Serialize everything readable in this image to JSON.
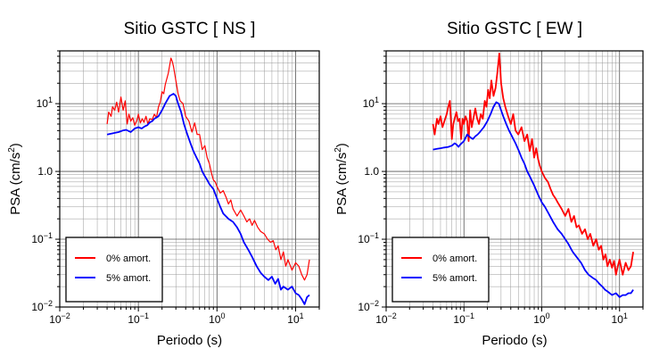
{
  "chart_data": [
    {
      "type": "line",
      "title": "Sitio GSTC [ NS ]",
      "xlabel": "Periodo (s)",
      "ylabel_main": "PSA (cm/s",
      "ylabel_sup": "2",
      "ylabel_end": ")",
      "xscale": "log",
      "yscale": "log",
      "xlim": [
        0.01,
        20
      ],
      "ylim": [
        0.01,
        60
      ],
      "grid": true,
      "legend_position": "bottom-left",
      "x_ticks": [
        {
          "value": 0.01,
          "base": "10",
          "exp": "−2"
        },
        {
          "value": 0.1,
          "base": "10",
          "exp": "−1"
        },
        {
          "value": 1,
          "base": "10",
          "exp": "0"
        },
        {
          "value": 10,
          "base": "10",
          "exp": "1"
        }
      ],
      "y_ticks": [
        {
          "value": 0.01,
          "base": "10",
          "exp": "−2"
        },
        {
          "value": 0.1,
          "base": "10",
          "exp": "−1"
        },
        {
          "value": 1,
          "base": "",
          "exp": "",
          "text": "1.0"
        },
        {
          "value": 10,
          "base": "10",
          "exp": "1"
        }
      ],
      "series": [
        {
          "name": "0% amort.",
          "color": "#ff0000",
          "width": 1.2,
          "x": [
            0.04,
            0.042,
            0.045,
            0.047,
            0.05,
            0.053,
            0.056,
            0.06,
            0.064,
            0.068,
            0.072,
            0.076,
            0.08,
            0.085,
            0.09,
            0.095,
            0.1,
            0.106,
            0.112,
            0.118,
            0.125,
            0.132,
            0.14,
            0.15,
            0.16,
            0.17,
            0.18,
            0.19,
            0.2,
            0.21,
            0.22,
            0.24,
            0.26,
            0.27,
            0.28,
            0.3,
            0.32,
            0.34,
            0.37,
            0.4,
            0.44,
            0.48,
            0.52,
            0.56,
            0.6,
            0.65,
            0.7,
            0.75,
            0.8,
            0.85,
            0.9,
            0.95,
            1.0,
            1.1,
            1.2,
            1.3,
            1.4,
            1.5,
            1.6,
            1.8,
            2.0,
            2.2,
            2.4,
            2.6,
            2.8,
            3.0,
            3.3,
            3.6,
            4.0,
            4.4,
            4.8,
            5.2,
            5.6,
            6.0,
            6.5,
            7.0,
            7.5,
            8.0,
            9.0,
            10.0,
            11.0,
            12.0,
            13.0,
            14.0,
            15.0
          ],
          "y": [
            5.0,
            7.5,
            6.5,
            9.0,
            8.0,
            10.5,
            7.5,
            12.5,
            8.0,
            11.0,
            5.0,
            7.0,
            5.5,
            6.2,
            4.8,
            5.5,
            7.0,
            5.2,
            6.0,
            5.3,
            6.5,
            5.0,
            6.0,
            5.8,
            7.0,
            6.2,
            9.0,
            10.5,
            15.0,
            14.0,
            19.0,
            28.0,
            47.0,
            42.0,
            35.0,
            22.0,
            14.0,
            11.0,
            10.0,
            6.5,
            5.5,
            3.8,
            5.2,
            3.5,
            3.5,
            2.1,
            2.4,
            1.6,
            1.3,
            0.95,
            0.75,
            0.7,
            0.6,
            0.48,
            0.52,
            0.42,
            0.33,
            0.38,
            0.28,
            0.22,
            0.27,
            0.22,
            0.18,
            0.2,
            0.16,
            0.19,
            0.15,
            0.13,
            0.12,
            0.1,
            0.09,
            0.095,
            0.07,
            0.08,
            0.05,
            0.065,
            0.04,
            0.05,
            0.035,
            0.045,
            0.04,
            0.03,
            0.025,
            0.03,
            0.05
          ]
        },
        {
          "name": "5% amort.",
          "color": "#0000ff",
          "width": 1.8,
          "x": [
            0.04,
            0.045,
            0.05,
            0.056,
            0.063,
            0.07,
            0.08,
            0.09,
            0.1,
            0.11,
            0.12,
            0.13,
            0.14,
            0.15,
            0.16,
            0.18,
            0.2,
            0.22,
            0.25,
            0.28,
            0.3,
            0.32,
            0.35,
            0.38,
            0.42,
            0.46,
            0.5,
            0.55,
            0.6,
            0.65,
            0.7,
            0.75,
            0.8,
            0.9,
            1.0,
            1.1,
            1.2,
            1.4,
            1.6,
            1.8,
            2.0,
            2.2,
            2.5,
            2.8,
            3.2,
            3.6,
            4.0,
            4.5,
            5.0,
            5.5,
            6.0,
            6.5,
            7.0,
            8.0,
            9.0,
            10.0,
            11.0,
            12.0,
            13.0,
            14.0,
            15.0
          ],
          "y": [
            3.5,
            3.6,
            3.7,
            3.8,
            4.0,
            4.1,
            3.8,
            4.3,
            4.5,
            4.3,
            4.6,
            4.8,
            5.3,
            5.5,
            6.0,
            6.5,
            8.0,
            10.0,
            13.0,
            14.0,
            13.0,
            10.0,
            7.5,
            5.0,
            3.5,
            2.6,
            2.0,
            1.6,
            1.3,
            1.0,
            0.85,
            0.75,
            0.65,
            0.55,
            0.4,
            0.3,
            0.24,
            0.2,
            0.18,
            0.15,
            0.12,
            0.09,
            0.07,
            0.055,
            0.04,
            0.032,
            0.028,
            0.025,
            0.028,
            0.022,
            0.026,
            0.018,
            0.02,
            0.018,
            0.02,
            0.016,
            0.015,
            0.013,
            0.011,
            0.014,
            0.015
          ]
        }
      ]
    },
    {
      "type": "line",
      "title": "Sitio GSTC [ EW ]",
      "xlabel": "Periodo (s)",
      "ylabel_main": "PSA (cm/s",
      "ylabel_sup": "2",
      "ylabel_end": ")",
      "xscale": "log",
      "yscale": "log",
      "xlim": [
        0.01,
        20
      ],
      "ylim": [
        0.01,
        60
      ],
      "grid": true,
      "legend_position": "bottom-left",
      "x_ticks": [
        {
          "value": 0.01,
          "base": "10",
          "exp": "−2"
        },
        {
          "value": 0.1,
          "base": "10",
          "exp": "−1"
        },
        {
          "value": 1,
          "base": "10",
          "exp": "0"
        },
        {
          "value": 10,
          "base": "10",
          "exp": "1"
        }
      ],
      "y_ticks": [
        {
          "value": 0.01,
          "base": "10",
          "exp": "−2"
        },
        {
          "value": 0.1,
          "base": "10",
          "exp": "−1"
        },
        {
          "value": 1,
          "base": "",
          "exp": "",
          "text": "1.0"
        },
        {
          "value": 10,
          "base": "10",
          "exp": "1"
        }
      ],
      "series": [
        {
          "name": "0% amort.",
          "color": "#ff0000",
          "width": 1.8,
          "x": [
            0.04,
            0.042,
            0.045,
            0.047,
            0.05,
            0.053,
            0.056,
            0.06,
            0.063,
            0.066,
            0.07,
            0.073,
            0.076,
            0.08,
            0.084,
            0.088,
            0.092,
            0.096,
            0.1,
            0.105,
            0.11,
            0.115,
            0.12,
            0.126,
            0.132,
            0.14,
            0.148,
            0.156,
            0.165,
            0.175,
            0.185,
            0.195,
            0.205,
            0.215,
            0.225,
            0.24,
            0.255,
            0.27,
            0.285,
            0.3,
            0.32,
            0.34,
            0.37,
            0.4,
            0.43,
            0.46,
            0.5,
            0.55,
            0.6,
            0.65,
            0.7,
            0.75,
            0.8,
            0.85,
            0.9,
            0.95,
            1.0,
            1.1,
            1.2,
            1.3,
            1.4,
            1.5,
            1.6,
            1.8,
            2.0,
            2.2,
            2.4,
            2.6,
            2.8,
            3.0,
            3.3,
            3.6,
            3.9,
            4.2,
            4.6,
            5.0,
            5.4,
            5.8,
            6.2,
            6.6,
            7.0,
            7.5,
            8.0,
            8.5,
            9.0,
            9.5,
            10.0,
            11.0,
            12.0,
            13.0,
            14.0,
            15.0
          ],
          "y": [
            5.0,
            3.5,
            6.0,
            5.0,
            6.5,
            4.5,
            5.5,
            7.0,
            9.0,
            11.0,
            3.0,
            5.0,
            6.0,
            7.5,
            5.5,
            6.0,
            3.0,
            6.0,
            5.0,
            6.5,
            5.5,
            2.8,
            8.0,
            4.5,
            6.0,
            8.5,
            6.0,
            5.0,
            7.0,
            6.0,
            11.0,
            9.0,
            16.0,
            12.0,
            22.0,
            13.0,
            17.0,
            30.0,
            55.0,
            20.0,
            12.0,
            9.0,
            6.5,
            5.0,
            7.0,
            4.0,
            3.5,
            4.5,
            2.8,
            3.5,
            2.0,
            3.0,
            1.6,
            2.2,
            1.5,
            1.2,
            1.0,
            0.8,
            0.7,
            0.55,
            0.45,
            0.4,
            0.35,
            0.28,
            0.22,
            0.28,
            0.18,
            0.22,
            0.15,
            0.16,
            0.12,
            0.14,
            0.1,
            0.12,
            0.08,
            0.1,
            0.07,
            0.08,
            0.05,
            0.06,
            0.04,
            0.05,
            0.038,
            0.048,
            0.03,
            0.04,
            0.05,
            0.03,
            0.045,
            0.035,
            0.04,
            0.065
          ]
        },
        {
          "name": "5% amort.",
          "color": "#0000ff",
          "width": 1.8,
          "x": [
            0.04,
            0.045,
            0.05,
            0.056,
            0.063,
            0.07,
            0.076,
            0.08,
            0.085,
            0.09,
            0.1,
            0.11,
            0.12,
            0.13,
            0.14,
            0.15,
            0.16,
            0.18,
            0.2,
            0.22,
            0.24,
            0.26,
            0.28,
            0.3,
            0.32,
            0.35,
            0.38,
            0.42,
            0.46,
            0.5,
            0.55,
            0.6,
            0.65,
            0.7,
            0.75,
            0.8,
            0.9,
            1.0,
            1.1,
            1.2,
            1.4,
            1.6,
            1.8,
            2.0,
            2.2,
            2.5,
            2.8,
            3.2,
            3.6,
            4.0,
            4.5,
            5.0,
            5.5,
            6.0,
            6.5,
            7.0,
            8.0,
            9.0,
            10.0,
            11.0,
            12.0,
            13.0,
            14.0,
            15.0
          ],
          "y": [
            2.1,
            2.15,
            2.2,
            2.25,
            2.3,
            2.4,
            2.6,
            2.5,
            2.3,
            2.5,
            2.8,
            3.5,
            3.2,
            3.0,
            3.3,
            3.5,
            3.8,
            4.5,
            5.5,
            7.0,
            9.0,
            10.5,
            10.0,
            8.0,
            6.5,
            5.0,
            4.0,
            3.2,
            2.6,
            2.1,
            1.6,
            1.3,
            1.0,
            0.85,
            0.72,
            0.62,
            0.45,
            0.35,
            0.3,
            0.25,
            0.18,
            0.14,
            0.12,
            0.1,
            0.085,
            0.065,
            0.055,
            0.045,
            0.035,
            0.03,
            0.027,
            0.025,
            0.022,
            0.02,
            0.018,
            0.017,
            0.015,
            0.016,
            0.014,
            0.015,
            0.015,
            0.016,
            0.016,
            0.018
          ]
        }
      ]
    }
  ]
}
